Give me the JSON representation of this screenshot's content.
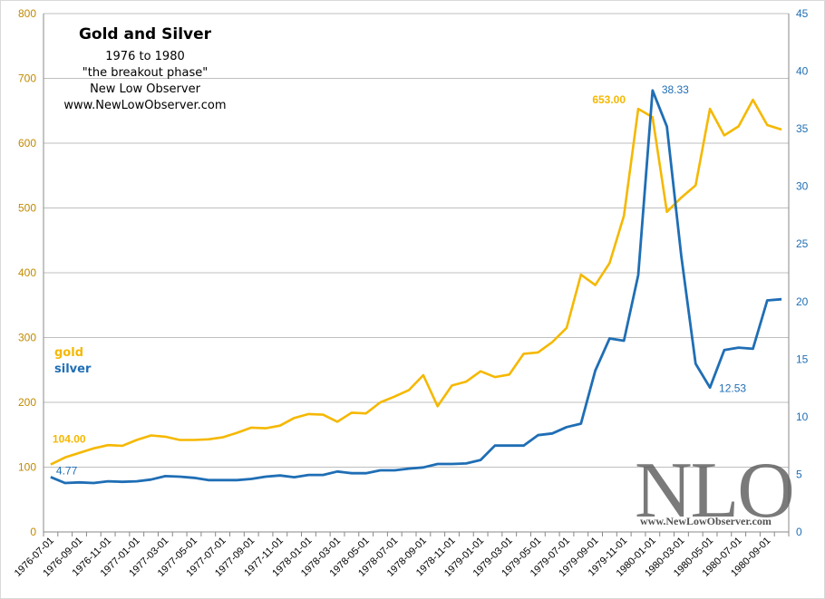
{
  "title_block": {
    "title": "Gold and Silver",
    "subtitle": "1976  to 1980",
    "phase": "\"the breakout phase\"",
    "author": "New Low Observer",
    "site": "www.NewLowObserver.com"
  },
  "legend": {
    "gold": "gold",
    "silver": "silver"
  },
  "watermark": {
    "logo": "NLO",
    "url": "www.NewLowObserver.com"
  },
  "colors": {
    "gold": "#f5b800",
    "silver": "#1f6eb5",
    "grid": "#bfbfbf",
    "axis_left": "#c08a00",
    "axis_right": "#1f6eb5"
  },
  "chart_data": {
    "type": "line",
    "title": "Gold and Silver",
    "xlabel": "",
    "ylabel_left": "",
    "ylabel_right": "",
    "ylim_left": [
      0,
      800
    ],
    "ylim_right": [
      0,
      45
    ],
    "y_ticks_left": [
      0,
      100,
      200,
      300,
      400,
      500,
      600,
      700,
      800
    ],
    "y_ticks_right": [
      0,
      5,
      10,
      15,
      20,
      25,
      30,
      35,
      40,
      45
    ],
    "x_tick_labels": [
      "1976-07-01",
      "1976-09-01",
      "1976-11-01",
      "1977-01-01",
      "1977-03-01",
      "1977-05-01",
      "1977-07-01",
      "1977-09-01",
      "1977-11-01",
      "1978-01-01",
      "1978-03-01",
      "1978-05-01",
      "1978-07-01",
      "1978-09-01",
      "1978-11-01",
      "1979-01-01",
      "1979-03-01",
      "1979-05-01",
      "1979-07-01",
      "1979-09-01",
      "1979-11-01",
      "1980-01-01",
      "1980-03-01",
      "1980-05-01",
      "1980-07-01",
      "1980-09-01"
    ],
    "months_per_label": 2,
    "series": [
      {
        "name": "gold",
        "axis": "left",
        "values": [
          104,
          115,
          122,
          129,
          134,
          133,
          142,
          149,
          147,
          142,
          142,
          143,
          146,
          153,
          161,
          160,
          164,
          176,
          182,
          181,
          170,
          184,
          183,
          200,
          209,
          219,
          242,
          194,
          226,
          232,
          248,
          239,
          243,
          275,
          277,
          293,
          315,
          397,
          381,
          415,
          488,
          653,
          640,
          494,
          516,
          535,
          653,
          612,
          626,
          667,
          628,
          621
        ]
      },
      {
        "name": "silver",
        "axis": "right",
        "values": [
          4.77,
          4.25,
          4.3,
          4.25,
          4.4,
          4.35,
          4.4,
          4.55,
          4.85,
          4.8,
          4.7,
          4.5,
          4.5,
          4.5,
          4.6,
          4.8,
          4.9,
          4.75,
          4.95,
          4.95,
          5.25,
          5.1,
          5.1,
          5.35,
          5.35,
          5.5,
          5.6,
          5.9,
          5.9,
          5.95,
          6.25,
          7.5,
          7.5,
          7.5,
          8.4,
          8.55,
          9.1,
          9.4,
          14.0,
          16.8,
          16.6,
          22.3,
          38.33,
          35.2,
          24.0,
          14.6,
          12.53,
          15.8,
          16.0,
          15.9,
          20.1,
          20.2
        ]
      }
    ],
    "annotations": [
      {
        "series": "gold",
        "index": 0,
        "label": "104.00"
      },
      {
        "series": "gold",
        "index": 41,
        "label": "653.00"
      },
      {
        "series": "silver",
        "index": 0,
        "label": "4.77"
      },
      {
        "series": "silver",
        "index": 42,
        "label": "38.33"
      },
      {
        "series": "silver",
        "index": 46,
        "label": "12.53"
      }
    ]
  }
}
